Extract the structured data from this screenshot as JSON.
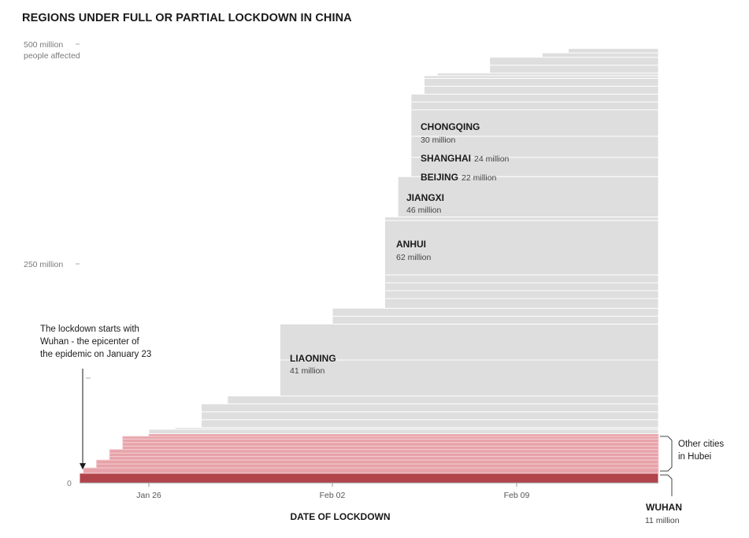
{
  "chart_data": {
    "type": "stacked-area-bars",
    "title": "REGIONS UNDER FULL OR PARTIAL LOCKDOWN IN CHINA",
    "xlabel": "DATE OF LOCKDOWN",
    "ylabel": "500 million people affected",
    "y_ticks": [
      {
        "value": 500,
        "label": "500 million",
        "sublabel": "people affected"
      },
      {
        "value": 250,
        "label": "250 million"
      },
      {
        "value": 0,
        "label": "0"
      }
    ],
    "ylim": [
      0,
      500
    ],
    "x_range_days": [
      0,
      22
    ],
    "x_start_date": "Jan 23",
    "x_ticks": [
      {
        "day": 2.75,
        "label": "Jan 26"
      },
      {
        "day": 9.75,
        "label": "Feb 02"
      },
      {
        "day": 16.75,
        "label": "Feb 09"
      }
    ],
    "colors": {
      "wuhan": "#b1444a",
      "hubei": "#e7a3a9",
      "hubei_separator": "#f4d2d5",
      "other": "#dedede",
      "separator": "#ffffff",
      "axis": "#999999"
    },
    "series": [
      {
        "name": "Wuhan",
        "group": "wuhan",
        "start_day": 0,
        "value": 11
      },
      {
        "name": "",
        "group": "hubei",
        "start_day": 0.25,
        "value": 6
      },
      {
        "name": "",
        "group": "hubei",
        "start_day": 0.75,
        "value": 4.5
      },
      {
        "name": "",
        "group": "hubei",
        "start_day": 0.75,
        "value": 4.5
      },
      {
        "name": "",
        "group": "hubei",
        "start_day": 1.25,
        "value": 4
      },
      {
        "name": "",
        "group": "hubei",
        "start_day": 1.25,
        "value": 4
      },
      {
        "name": "",
        "group": "hubei",
        "start_day": 1.25,
        "value": 4
      },
      {
        "name": "",
        "group": "hubei",
        "start_day": 1.75,
        "value": 4
      },
      {
        "name": "",
        "group": "hubei",
        "start_day": 1.75,
        "value": 4
      },
      {
        "name": "",
        "group": "hubei",
        "start_day": 1.75,
        "value": 4
      },
      {
        "name": "",
        "group": "hubei",
        "start_day": 1.75,
        "value": 3
      },
      {
        "name": "",
        "group": "hubei",
        "start_day": 2.75,
        "value": 3
      },
      {
        "name": "",
        "group": "other",
        "start_day": 2.75,
        "value": 5
      },
      {
        "name": "",
        "group": "other",
        "start_day": 3.75,
        "value": 2
      },
      {
        "name": "",
        "group": "other",
        "start_day": 4.75,
        "value": 9
      },
      {
        "name": "",
        "group": "other",
        "start_day": 4.75,
        "value": 9
      },
      {
        "name": "",
        "group": "other",
        "start_day": 4.75,
        "value": 9
      },
      {
        "name": "",
        "group": "other",
        "start_day": 5.75,
        "value": 9
      },
      {
        "name": "",
        "group": "other",
        "start_day": 7.75,
        "value": 41
      },
      {
        "name": "Liaoning",
        "group": "other",
        "start_day": 7.75,
        "value": 41
      },
      {
        "name": "",
        "group": "other",
        "start_day": 9.75,
        "value": 9
      },
      {
        "name": "",
        "group": "other",
        "start_day": 9.75,
        "value": 9
      },
      {
        "name": "",
        "group": "other",
        "start_day": 11.75,
        "value": 11
      },
      {
        "name": "",
        "group": "other",
        "start_day": 11.75,
        "value": 9
      },
      {
        "name": "",
        "group": "other",
        "start_day": 11.75,
        "value": 9
      },
      {
        "name": "",
        "group": "other",
        "start_day": 11.75,
        "value": 9
      },
      {
        "name": "Anhui",
        "group": "other",
        "start_day": 11.75,
        "value": 62
      },
      {
        "name": "",
        "group": "other",
        "start_day": 11.75,
        "value": 4
      },
      {
        "name": "Jiangxi",
        "group": "other",
        "start_day": 12.25,
        "value": 46
      },
      {
        "name": "Beijing",
        "group": "other",
        "start_day": 12.75,
        "value": 22
      },
      {
        "name": "Shanghai",
        "group": "other",
        "start_day": 12.75,
        "value": 24
      },
      {
        "name": "Chongqing",
        "group": "other",
        "start_day": 12.75,
        "value": 30
      },
      {
        "name": "",
        "group": "other",
        "start_day": 12.75,
        "value": 9
      },
      {
        "name": "",
        "group": "other",
        "start_day": 12.75,
        "value": 9
      },
      {
        "name": "",
        "group": "other",
        "start_day": 13.25,
        "value": 9
      },
      {
        "name": "",
        "group": "other",
        "start_day": 13.25,
        "value": 9
      },
      {
        "name": "",
        "group": "other",
        "start_day": 13.25,
        "value": 3
      },
      {
        "name": "",
        "group": "other",
        "start_day": 13.75,
        "value": 3
      },
      {
        "name": "",
        "group": "other",
        "start_day": 15.75,
        "value": 9
      },
      {
        "name": "",
        "group": "other",
        "start_day": 15.75,
        "value": 9
      },
      {
        "name": "",
        "group": "other",
        "start_day": 17.75,
        "value": 5
      },
      {
        "name": "",
        "group": "other",
        "start_day": 18.75,
        "value": 5
      }
    ],
    "labels": [
      {
        "name": "CHONGQING",
        "value_text": "30 million",
        "inline": false
      },
      {
        "name": "SHANGHAI",
        "value_text": "24 million",
        "inline": true
      },
      {
        "name": "BEIJING",
        "value_text": "22 million",
        "inline": true
      },
      {
        "name": "JIANGXI",
        "value_text": "46 million",
        "inline": false
      },
      {
        "name": "ANHUI",
        "value_text": "62 million",
        "inline": false
      },
      {
        "name": "LIAONING",
        "value_text": "41 million",
        "inline": false
      }
    ],
    "annotations": {
      "lockdown_note": [
        "The lockdown starts with",
        "Wuhan - the epicenter of",
        "the epidemic on January 23"
      ],
      "hubei_label": [
        "Other cities",
        "in Hubei"
      ],
      "wuhan_label": "WUHAN",
      "wuhan_value": "11 million"
    }
  }
}
